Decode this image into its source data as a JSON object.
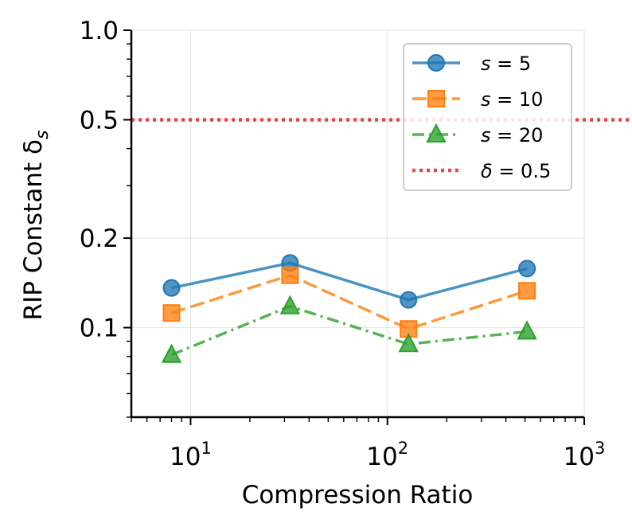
{
  "chart_data": {
    "type": "line",
    "title": "",
    "xlabel": "Compression Ratio",
    "ylabel": "RIP Constant δ",
    "ylabel_subscript": "s",
    "xscale": "log",
    "yscale": "log",
    "xlim": [
      5,
      1000
    ],
    "ylim": [
      0.05,
      1.0
    ],
    "grid": true,
    "legend_position": "top-right",
    "x_ticks": [
      {
        "value": 10,
        "base": "10",
        "exp": "1"
      },
      {
        "value": 100,
        "base": "10",
        "exp": "2"
      },
      {
        "value": 1000,
        "base": "10",
        "exp": "3"
      }
    ],
    "y_ticks": [
      {
        "value": 0.1,
        "label": "0.1"
      },
      {
        "value": 0.2,
        "label": "0.2"
      },
      {
        "value": 0.5,
        "label": "0.5"
      },
      {
        "value": 1.0,
        "label": "1.0"
      }
    ],
    "x": [
      8,
      32,
      128,
      512
    ],
    "series": [
      {
        "name": "s = 5",
        "var": "s",
        "rest": " = 5",
        "color": "#1f77b4",
        "marker": "circle",
        "dash": "",
        "values": [
          0.136,
          0.165,
          0.124,
          0.158
        ]
      },
      {
        "name": "s = 10",
        "var": "s",
        "rest": " = 10",
        "color": "#ff7f0e",
        "marker": "square",
        "dash": "18 7",
        "values": [
          0.112,
          0.15,
          0.099,
          0.133
        ]
      },
      {
        "name": "s = 20",
        "var": "s",
        "rest": " = 20",
        "color": "#2ca02c",
        "marker": "triangle",
        "dash": "15 6 3 6",
        "values": [
          0.081,
          0.118,
          0.088,
          0.097
        ]
      }
    ],
    "reference_lines": [
      {
        "name": "δ = 0.5",
        "var": "δ",
        "rest": " = 0.5",
        "value": 0.5,
        "color": "#e41a1c",
        "dash": "4 5"
      }
    ]
  }
}
